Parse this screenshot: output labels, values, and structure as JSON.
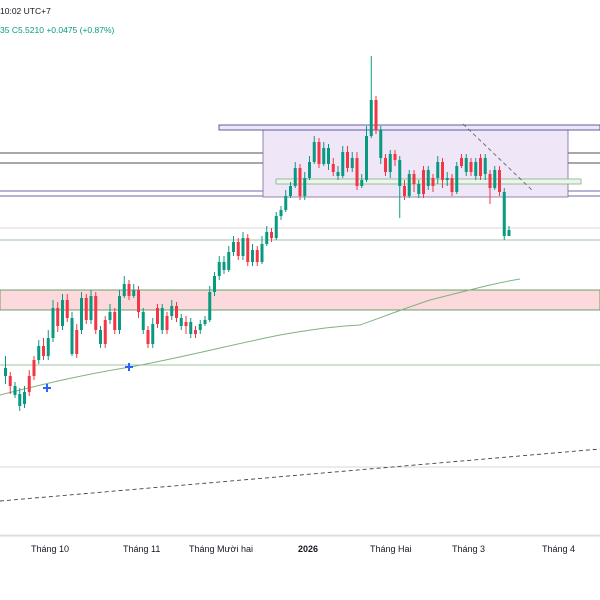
{
  "header": {
    "time_text": "10:02 UTC+7",
    "values_text": "35  C5.5210  +0.0475 (+0.87%)"
  },
  "colors": {
    "up": "#089981",
    "down": "#f23645",
    "ma": "#7fb27f",
    "box_fill": "#e9e0f5",
    "box_stroke": "#7a6b9a",
    "zone_fill": "#fcd9dc",
    "zone_stroke": "#4a8a4a",
    "marker": "#2962ff"
  },
  "chart_data": {
    "type": "candlestick",
    "x_axis_labels": [
      "Tháng 10",
      "Tháng 11",
      "Tháng Mười hai",
      "2026",
      "Tháng Hai",
      "Tháng 3",
      "Tháng 4"
    ],
    "x_axis_bold": [
      "2026"
    ],
    "last_close": 5.521,
    "change": 0.0475,
    "change_percent": 0.87,
    "candles": [
      [
        1,
        368,
        376,
        356,
        384
      ],
      [
        0,
        376,
        386,
        372,
        394
      ],
      [
        1,
        386,
        395,
        382,
        398
      ],
      [
        1,
        394,
        406,
        388,
        411
      ],
      [
        1,
        404,
        392,
        386,
        408
      ],
      [
        0,
        392,
        376,
        370,
        396
      ],
      [
        0,
        376,
        360,
        356,
        380
      ],
      [
        1,
        360,
        346,
        340,
        364
      ],
      [
        0,
        346,
        356,
        338,
        360
      ],
      [
        1,
        356,
        338,
        330,
        360
      ],
      [
        1,
        338,
        308,
        300,
        342
      ],
      [
        0,
        308,
        326,
        302,
        332
      ],
      [
        1,
        326,
        300,
        294,
        330
      ],
      [
        0,
        300,
        318,
        294,
        322
      ],
      [
        1,
        318,
        354,
        312,
        356
      ],
      [
        0,
        354,
        330,
        324,
        358
      ],
      [
        1,
        330,
        298,
        292,
        334
      ],
      [
        0,
        298,
        320,
        294,
        324
      ],
      [
        1,
        320,
        296,
        290,
        324
      ],
      [
        0,
        296,
        330,
        292,
        334
      ],
      [
        1,
        330,
        344,
        326,
        348
      ],
      [
        0,
        344,
        320,
        316,
        348
      ],
      [
        1,
        320,
        312,
        304,
        324
      ],
      [
        0,
        312,
        330,
        308,
        334
      ],
      [
        1,
        330,
        296,
        290,
        334
      ],
      [
        1,
        296,
        284,
        276,
        298
      ],
      [
        0,
        284,
        296,
        280,
        300
      ],
      [
        1,
        296,
        290,
        284,
        298
      ],
      [
        0,
        290,
        312,
        286,
        318
      ],
      [
        1,
        312,
        330,
        308,
        334
      ],
      [
        0,
        330,
        344,
        326,
        348
      ],
      [
        1,
        344,
        324,
        318,
        348
      ],
      [
        0,
        324,
        308,
        304,
        328
      ],
      [
        1,
        308,
        330,
        304,
        334
      ],
      [
        0,
        330,
        316,
        312,
        334
      ],
      [
        1,
        316,
        306,
        300,
        320
      ],
      [
        0,
        306,
        318,
        302,
        322
      ],
      [
        1,
        318,
        326,
        314,
        330
      ],
      [
        0,
        326,
        322,
        316,
        334
      ],
      [
        1,
        322,
        334,
        318,
        338
      ],
      [
        0,
        334,
        330,
        326,
        338
      ],
      [
        1,
        330,
        324,
        320,
        334
      ],
      [
        1,
        324,
        320,
        316,
        326
      ],
      [
        1,
        320,
        292,
        286,
        322
      ],
      [
        1,
        292,
        276,
        272,
        296
      ],
      [
        1,
        276,
        262,
        256,
        280
      ],
      [
        1,
        262,
        270,
        256,
        274
      ],
      [
        1,
        270,
        252,
        246,
        272
      ],
      [
        1,
        252,
        242,
        236,
        256
      ],
      [
        0,
        242,
        256,
        238,
        260
      ],
      [
        1,
        256,
        238,
        232,
        260
      ],
      [
        0,
        238,
        262,
        234,
        266
      ],
      [
        1,
        262,
        250,
        244,
        266
      ],
      [
        0,
        250,
        262,
        246,
        266
      ],
      [
        1,
        262,
        244,
        236,
        264
      ],
      [
        1,
        244,
        232,
        226,
        246
      ],
      [
        0,
        232,
        238,
        228,
        242
      ],
      [
        1,
        238,
        216,
        212,
        240
      ],
      [
        1,
        216,
        210,
        206,
        220
      ],
      [
        1,
        210,
        196,
        190,
        212
      ],
      [
        1,
        196,
        186,
        182,
        198
      ],
      [
        1,
        186,
        168,
        162,
        188
      ],
      [
        0,
        168,
        196,
        164,
        200
      ],
      [
        1,
        196,
        178,
        172,
        200
      ],
      [
        1,
        178,
        162,
        156,
        180
      ],
      [
        1,
        162,
        142,
        136,
        164
      ],
      [
        0,
        142,
        164,
        138,
        168
      ],
      [
        1,
        164,
        148,
        142,
        166
      ],
      [
        1,
        148,
        164,
        144,
        170
      ],
      [
        0,
        164,
        172,
        158,
        176
      ],
      [
        1,
        172,
        176,
        166,
        180
      ],
      [
        1,
        176,
        152,
        146,
        178
      ],
      [
        0,
        152,
        168,
        146,
        172
      ],
      [
        1,
        168,
        158,
        152,
        172
      ],
      [
        0,
        158,
        186,
        152,
        190
      ],
      [
        1,
        186,
        180,
        174,
        188
      ],
      [
        1,
        180,
        136,
        126,
        182
      ],
      [
        1,
        136,
        100,
        56,
        138
      ],
      [
        0,
        100,
        130,
        96,
        134
      ],
      [
        1,
        130,
        158,
        126,
        164
      ],
      [
        0,
        158,
        172,
        154,
        176
      ],
      [
        1,
        172,
        154,
        150,
        178
      ],
      [
        0,
        154,
        160,
        150,
        166
      ],
      [
        1,
        160,
        186,
        156,
        218
      ],
      [
        0,
        186,
        196,
        180,
        200
      ],
      [
        1,
        196,
        174,
        170,
        198
      ],
      [
        0,
        174,
        184,
        170,
        192
      ],
      [
        1,
        184,
        194,
        180,
        198
      ],
      [
        0,
        194,
        170,
        166,
        198
      ],
      [
        1,
        170,
        186,
        166,
        190
      ],
      [
        0,
        186,
        178,
        174,
        192
      ],
      [
        1,
        178,
        162,
        156,
        184
      ],
      [
        0,
        162,
        180,
        158,
        188
      ],
      [
        1,
        180,
        178,
        172,
        186
      ],
      [
        0,
        178,
        192,
        174,
        196
      ],
      [
        1,
        192,
        166,
        162,
        194
      ],
      [
        0,
        166,
        158,
        154,
        168
      ],
      [
        1,
        158,
        172,
        154,
        176
      ],
      [
        0,
        172,
        162,
        158,
        176
      ],
      [
        1,
        162,
        176,
        158,
        180
      ],
      [
        0,
        176,
        158,
        154,
        180
      ],
      [
        1,
        158,
        174,
        154,
        180
      ],
      [
        0,
        174,
        188,
        170,
        204
      ],
      [
        1,
        188,
        170,
        166,
        190
      ],
      [
        0,
        170,
        192,
        166,
        196
      ],
      [
        1,
        192,
        236,
        188,
        240
      ],
      [
        1,
        236,
        230,
        226,
        236
      ]
    ]
  }
}
